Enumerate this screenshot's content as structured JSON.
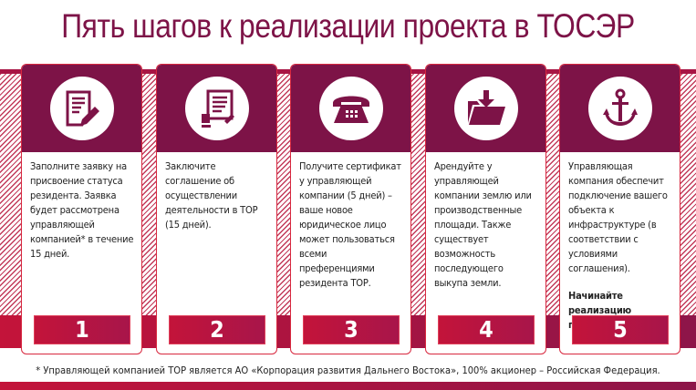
{
  "title": "Пять шагов к реализации проекта в ТОСЭР",
  "steps": [
    {
      "icon": "application-form-icon",
      "number": "1",
      "text": "Заполните заявку на присвоение статуса резидента. Заявка будет рассмотрена управляющей компанией* в течение 15 дней.",
      "bold": ""
    },
    {
      "icon": "signed-agreement-icon",
      "number": "2",
      "text": "Заключите соглашение об осуществлении деятельности в ТОР (15 дней).",
      "bold": ""
    },
    {
      "icon": "telephone-icon",
      "number": "3",
      "text": "Получите сертификат у управляющей компании (5 дней) – ваше новое юридическое лицо может пользоваться всеми преференциями резидента ТОР.",
      "bold": ""
    },
    {
      "icon": "folder-download-icon",
      "number": "4",
      "text": "Арендуйте у управляющей компании землю или производственные площади. Также существует возможность последующего выкупа земли.",
      "bold": ""
    },
    {
      "icon": "anchor-icon",
      "number": "5",
      "text": "Управляющая компания обеспечит подключение вашего объекта к инфраструктуре (в соответствии с условиями соглашения).",
      "bold": "Начинайте реализацию проекта!"
    }
  ],
  "footnote": "* Управляющей компанией ТОР является АО «Корпорация развития Дальнего Востока», 100% акционер – Российская Федерация.",
  "colors": {
    "purple": "#7d1347",
    "red": "#c3143a"
  }
}
